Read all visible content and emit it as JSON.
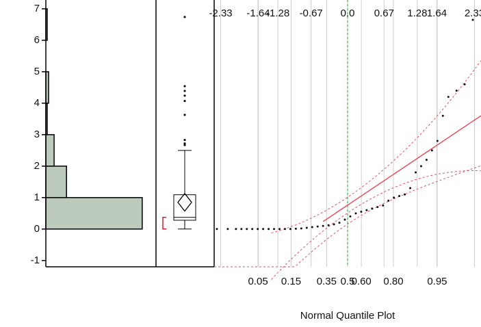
{
  "chart_data": [
    {
      "type": "histogram",
      "orientation": "horizontal",
      "bins": [
        0,
        1,
        2,
        3,
        4,
        5,
        6,
        7
      ],
      "values": [
        70,
        15,
        6,
        1,
        2,
        0,
        1
      ],
      "xlim": [
        0,
        80
      ],
      "ylim": [
        -1.2,
        7.28
      ],
      "yticks": [
        -1,
        0,
        1,
        2,
        3,
        4,
        5,
        6,
        7
      ],
      "color": "#bccbbb"
    },
    {
      "type": "box",
      "ylim": [
        -1.2,
        7.28
      ],
      "whisker_low": 0,
      "q1": 0.28,
      "median": 0.37,
      "q3": 1.09,
      "whisker_high": 2.5,
      "mean": 0.85,
      "mean_ci": [
        0.57,
        1.13
      ],
      "shortest_half": [
        0,
        0.37
      ],
      "outliers": [
        6.74,
        4.54,
        4.39,
        4.24,
        4.07,
        3.63,
        2.83,
        2.72,
        2.67
      ]
    },
    {
      "type": "scatter",
      "x_label": "Normal Quantile Plot",
      "xlim": [
        -2.45,
        2.45
      ],
      "ylim": [
        -1.2,
        7.28
      ],
      "xticks": [
        -2.33,
        -1.64,
        -1.28,
        -0.67,
        {
          "value": 0,
          "label": "0.0"
        },
        0.67,
        1.28,
        1.64,
        2.33
      ],
      "probability_ticks": [
        0.05,
        0.15,
        0.35,
        0.5,
        {
          "value": 0.6,
          "label": "0.60"
        },
        {
          "value": 0.8,
          "label": "0.80"
        },
        0.95
      ],
      "x": [
        -2.4,
        -2.2,
        -2.05,
        -1.95,
        -1.85,
        -1.75,
        -1.65,
        -1.55,
        -1.45,
        -1.35,
        -1.25,
        -1.15,
        -1.05,
        -0.95,
        -0.85,
        -0.75,
        -0.65,
        -0.55,
        -0.45,
        -0.35,
        -0.25,
        -0.15,
        -0.05,
        0.05,
        0.15,
        0.25,
        0.35,
        0.45,
        0.55,
        0.65,
        0.75,
        0.85,
        0.95,
        1.05,
        1.15,
        1.25,
        1.35,
        1.45,
        1.55,
        1.65,
        1.75,
        1.85,
        2.0,
        2.15,
        2.3
      ],
      "y": [
        0,
        0,
        0,
        0,
        0,
        0,
        0,
        0,
        0,
        0,
        0,
        0,
        0,
        0.01,
        0.02,
        0.04,
        0.06,
        0.08,
        0.1,
        0.12,
        0.15,
        0.2,
        0.3,
        0.4,
        0.5,
        0.55,
        0.6,
        0.65,
        0.7,
        0.75,
        0.9,
        1.0,
        1.05,
        1.1,
        1.3,
        1.8,
        2.0,
        2.2,
        2.5,
        2.8,
        3.6,
        4.2,
        4.4,
        4.6,
        6.65
      ],
      "fit_line": {
        "intercept": 0.76,
        "slope": 1.16
      },
      "line_color": "#e8505b",
      "point_color": "#111"
    }
  ]
}
